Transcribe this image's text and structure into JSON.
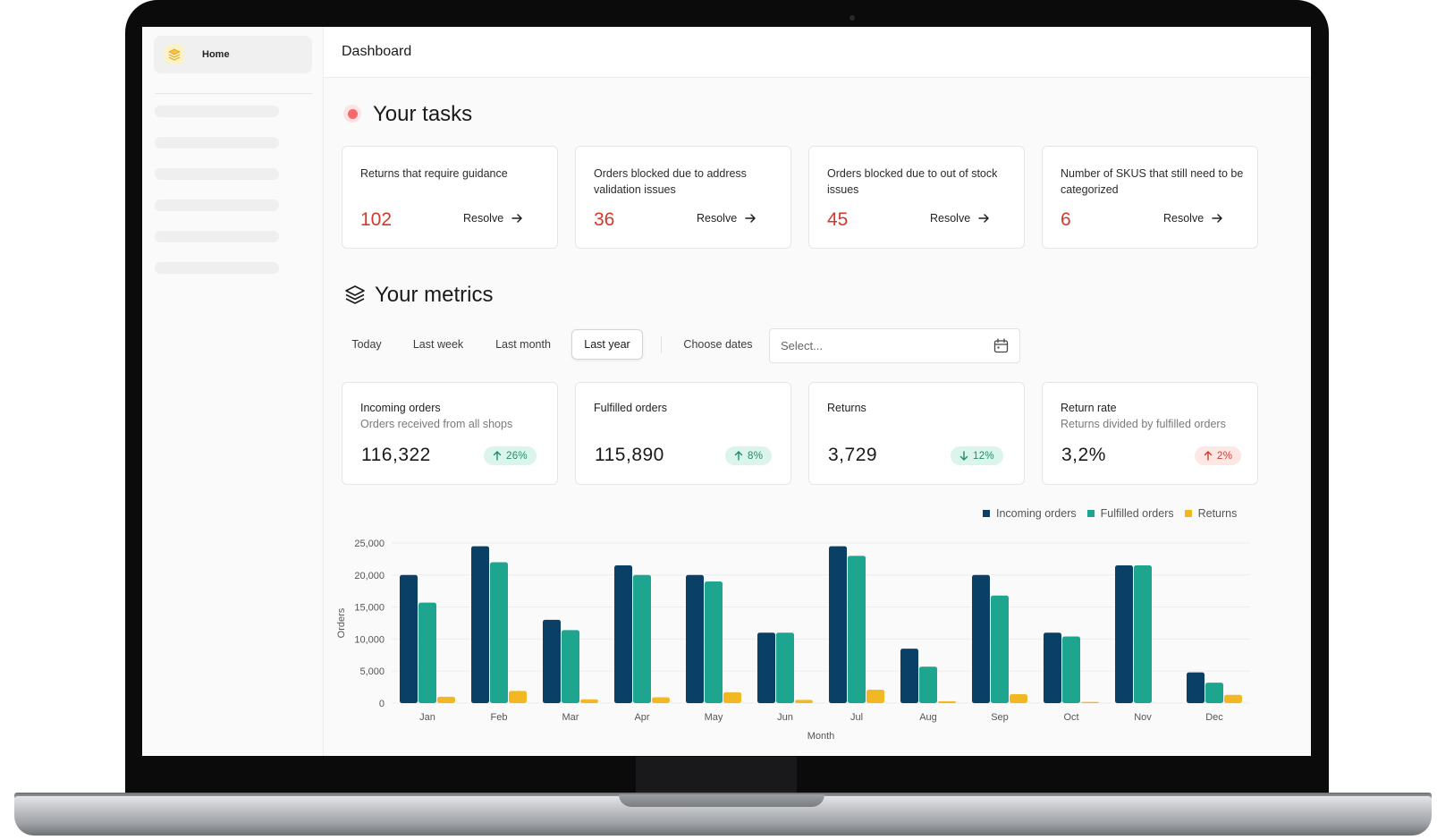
{
  "sidebar": {
    "home_label": "Home"
  },
  "header": {
    "title": "Dashboard"
  },
  "tasks": {
    "title": "Your tasks",
    "items": [
      {
        "label": "Returns that require guidance",
        "count": "102",
        "action": "Resolve"
      },
      {
        "label": "Orders blocked due to address validation issues",
        "count": "36",
        "action": "Resolve"
      },
      {
        "label": "Orders blocked due to out of stock issues",
        "count": "45",
        "action": "Resolve"
      },
      {
        "label": "Number of SKUS that still need to be categorized",
        "count": "6",
        "action": "Resolve"
      }
    ]
  },
  "metrics": {
    "title": "Your metrics",
    "filters": [
      "Today",
      "Last week",
      "Last month",
      "Last year"
    ],
    "active_filter": "Last year",
    "choose_dates_label": "Choose dates",
    "date_placeholder": "Select...",
    "cards": [
      {
        "title": "Incoming orders",
        "subtitle": "Orders received from all shops",
        "value": "116,322",
        "change": "26%",
        "direction": "up",
        "status": "good"
      },
      {
        "title": "Fulfilled orders",
        "subtitle": "",
        "value": "115,890",
        "change": "8%",
        "direction": "up",
        "status": "good"
      },
      {
        "title": "Returns",
        "subtitle": "",
        "value": "3,729",
        "change": "12%",
        "direction": "down",
        "status": "good"
      },
      {
        "title": "Return rate",
        "subtitle": "Returns divided by fulfilled orders",
        "value": "3,2%",
        "change": "2%",
        "direction": "up",
        "status": "bad"
      }
    ]
  },
  "colors": {
    "incoming": "#0b4066",
    "fulfilled": "#1ea58f",
    "returns": "#f2b824",
    "alert": "#d13a2a"
  },
  "chart_data": {
    "type": "bar",
    "xlabel": "Month",
    "ylabel": "Orders",
    "ylim": [
      0,
      25000
    ],
    "yticks": [
      0,
      5000,
      10000,
      15000,
      20000,
      25000
    ],
    "ytick_labels": [
      "0",
      "5,000",
      "10,000",
      "15,000",
      "20,000",
      "25,000"
    ],
    "legend_position": "top-right",
    "categories": [
      "Jan",
      "Feb",
      "Mar",
      "Apr",
      "May",
      "Jun",
      "Jul",
      "Aug",
      "Sep",
      "Oct",
      "Nov",
      "Dec"
    ],
    "series": [
      {
        "name": "Incoming orders",
        "values": [
          20000,
          24500,
          13000,
          21500,
          20000,
          11000,
          24500,
          8500,
          20000,
          11000,
          21500,
          4800
        ]
      },
      {
        "name": "Fulfilled orders",
        "values": [
          15700,
          22000,
          11400,
          20000,
          19000,
          11000,
          23000,
          5700,
          16800,
          10400,
          21500,
          3200
        ]
      },
      {
        "name": "Returns",
        "values": [
          1000,
          1900,
          600,
          900,
          1700,
          500,
          2100,
          300,
          1400,
          200,
          0,
          1300
        ]
      }
    ]
  }
}
